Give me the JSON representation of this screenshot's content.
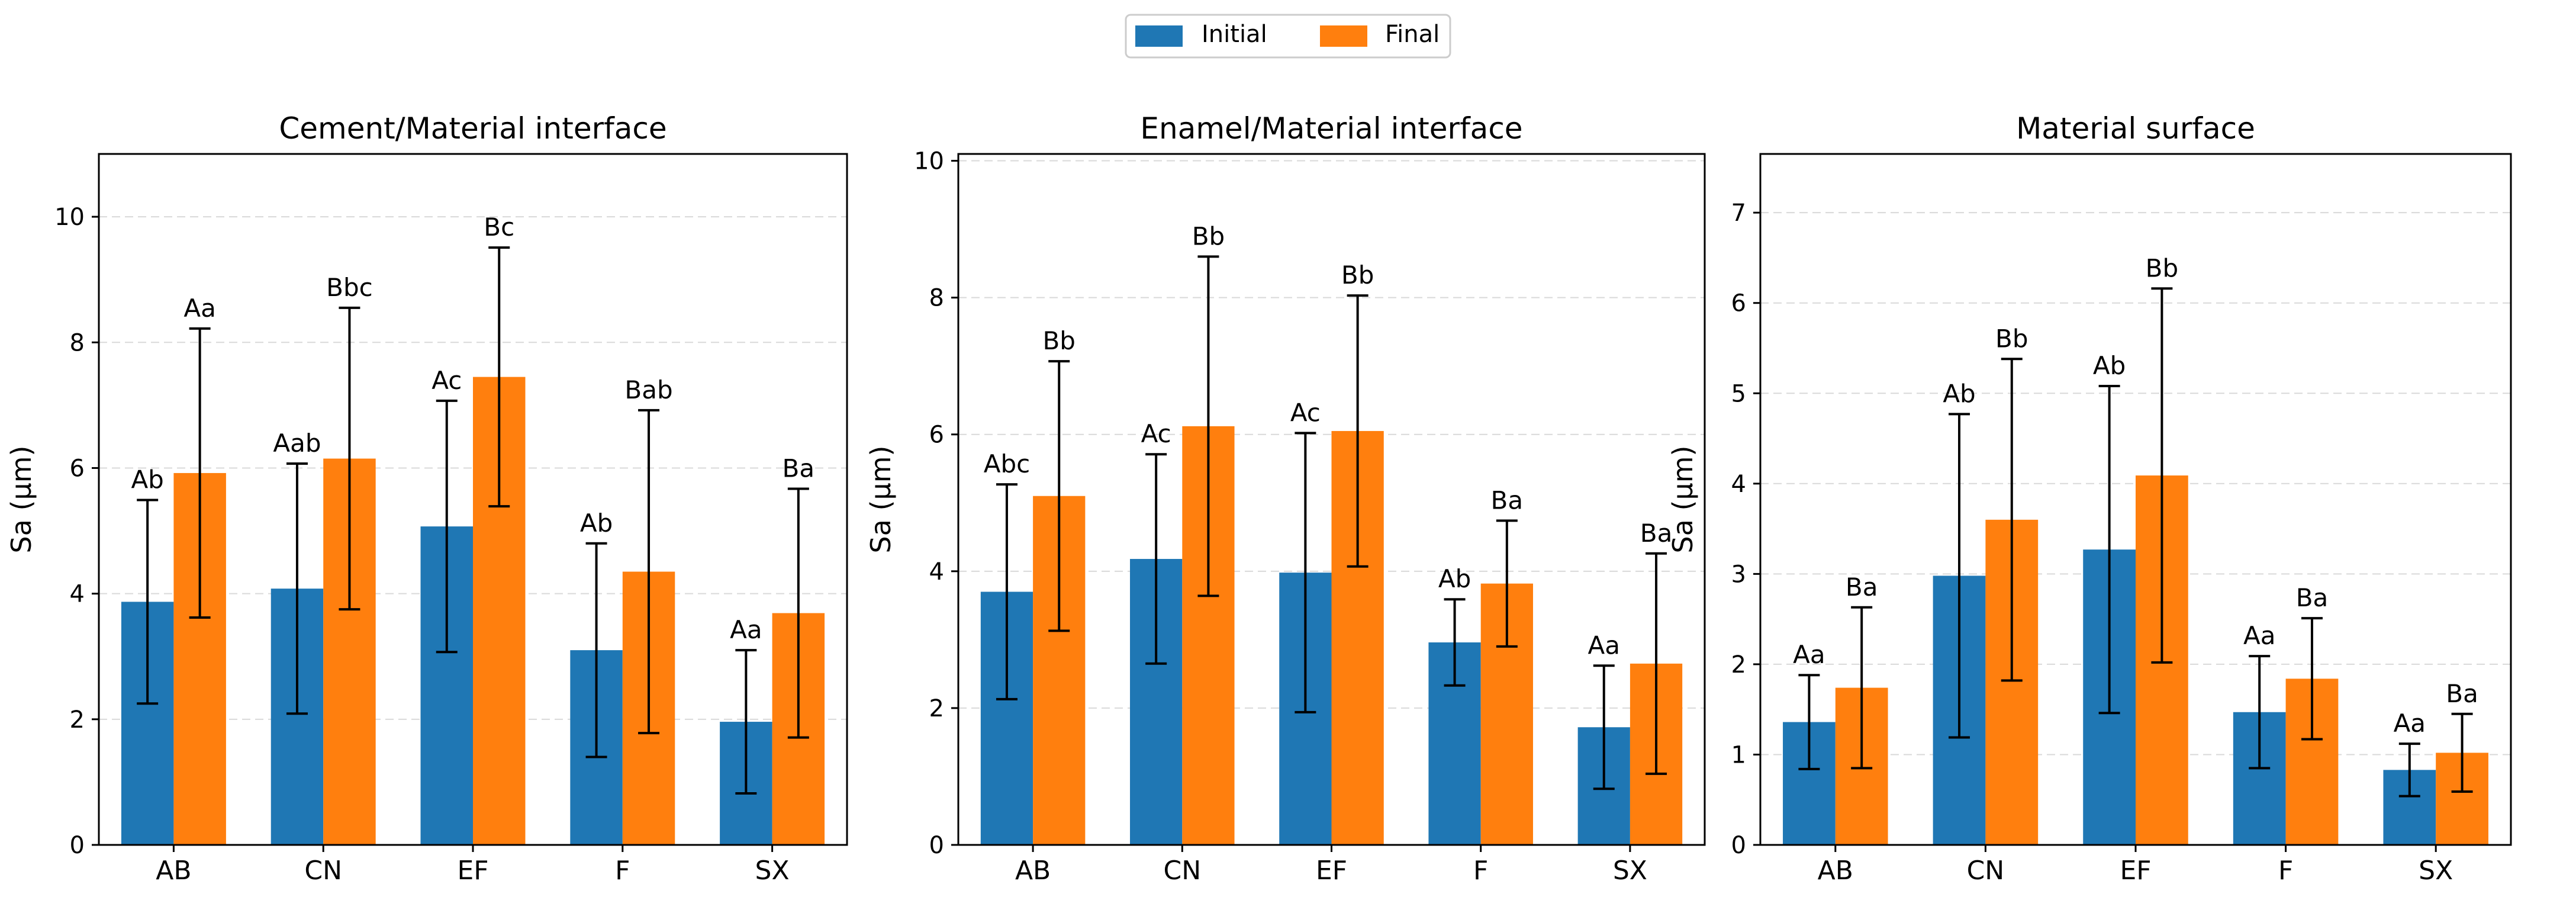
{
  "legend": {
    "placement": "top-center",
    "entries": [
      {
        "name": "Initial",
        "color": "#1f77b4"
      },
      {
        "name": "Final",
        "color": "#ff7f0e"
      }
    ]
  },
  "chart_data": [
    {
      "type": "bar",
      "title": "Cement/Material interface",
      "xlabel": "",
      "ylabel": "Sa (µm)",
      "ylim": [
        0,
        11
      ],
      "yticks": [
        0,
        2,
        4,
        6,
        8,
        10
      ],
      "grid": true,
      "categories": [
        "AB",
        "CN",
        "EF",
        "F",
        "SX"
      ],
      "series": [
        {
          "name": "Initial",
          "values": [
            3.87,
            4.08,
            5.07,
            3.1,
            1.96
          ],
          "errors": [
            1.62,
            1.99,
            2.0,
            1.7,
            1.14
          ],
          "labels": [
            "Ab",
            "Aab",
            "Ac",
            "Ab",
            "Aa"
          ]
        },
        {
          "name": "Final",
          "values": [
            5.92,
            6.15,
            7.45,
            4.35,
            3.69
          ],
          "errors": [
            2.3,
            2.4,
            2.06,
            2.57,
            1.98
          ],
          "labels": [
            "Aa",
            "Bbc",
            "Bc",
            "Bab",
            "Ba"
          ]
        }
      ]
    },
    {
      "type": "bar",
      "title": "Enamel/Material interface",
      "xlabel": "",
      "ylabel": "Sa (µm)",
      "ylim": [
        0,
        10.1
      ],
      "yticks": [
        0,
        2,
        4,
        6,
        8,
        10
      ],
      "grid": true,
      "categories": [
        "AB",
        "CN",
        "EF",
        "F",
        "SX"
      ],
      "series": [
        {
          "name": "Initial",
          "values": [
            3.7,
            4.18,
            3.98,
            2.96,
            1.72
          ],
          "errors": [
            1.57,
            1.53,
            2.04,
            0.63,
            0.9
          ],
          "labels": [
            "Abc",
            "Ac",
            "Ac",
            "Ab",
            "Aa"
          ]
        },
        {
          "name": "Final",
          "values": [
            5.1,
            6.12,
            6.05,
            3.82,
            2.65
          ],
          "errors": [
            1.97,
            2.48,
            1.98,
            0.92,
            1.61
          ],
          "labels": [
            "Bb",
            "Bb",
            "Bb",
            "Ba",
            "Ba"
          ]
        }
      ]
    },
    {
      "type": "bar",
      "title": "Material surface",
      "xlabel": "",
      "ylabel": "Sa (µm)",
      "ylim": [
        0,
        7.65
      ],
      "yticks": [
        0,
        1,
        2,
        3,
        4,
        5,
        6,
        7
      ],
      "grid": true,
      "categories": [
        "AB",
        "CN",
        "EF",
        "F",
        "SX"
      ],
      "series": [
        {
          "name": "Initial",
          "values": [
            1.36,
            2.98,
            3.27,
            1.47,
            0.83
          ],
          "errors": [
            0.52,
            1.79,
            1.81,
            0.62,
            0.29
          ],
          "labels": [
            "Aa",
            "Ab",
            "Ab",
            "Aa",
            "Aa"
          ]
        },
        {
          "name": "Final",
          "values": [
            1.74,
            3.6,
            4.09,
            1.84,
            1.02
          ],
          "errors": [
            0.89,
            1.78,
            2.07,
            0.67,
            0.43
          ],
          "labels": [
            "Ba",
            "Bb",
            "Bb",
            "Ba",
            "Ba"
          ]
        }
      ]
    }
  ]
}
